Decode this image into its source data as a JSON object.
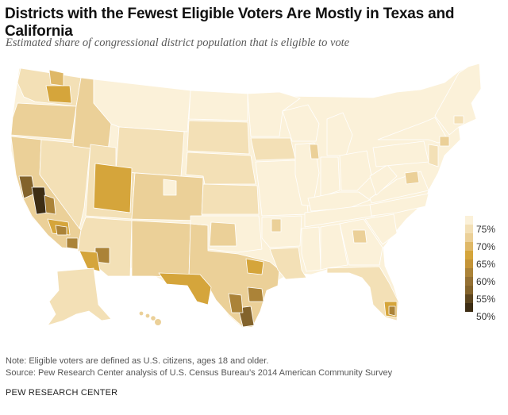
{
  "title": "Districts with the Fewest Eligible Voters Are Mostly in Texas and California",
  "subtitle": "Estimated share of congressional district population that is eligible to vote",
  "colors": {
    "c75plus": "#fbf1d9",
    "c72": "#f3e0b6",
    "c70": "#ebd098",
    "c67": "#dfb867",
    "c65": "#d5a53b",
    "c60": "#ab8338",
    "c55": "#83632b",
    "c50": "#3d2d14",
    "border": "#ffffff"
  },
  "legend": {
    "labels": [
      "75%",
      "70%",
      "65%",
      "60%",
      "55%",
      "50%"
    ]
  },
  "note": "Note: Eligible voters are defined as U.S. citizens, ages 18 and older.",
  "source": "Source: Pew Research Center analysis of U.S. Census Bureau’s 2014 American Community Survey",
  "org": "PEW RESEARCH CENTER"
}
